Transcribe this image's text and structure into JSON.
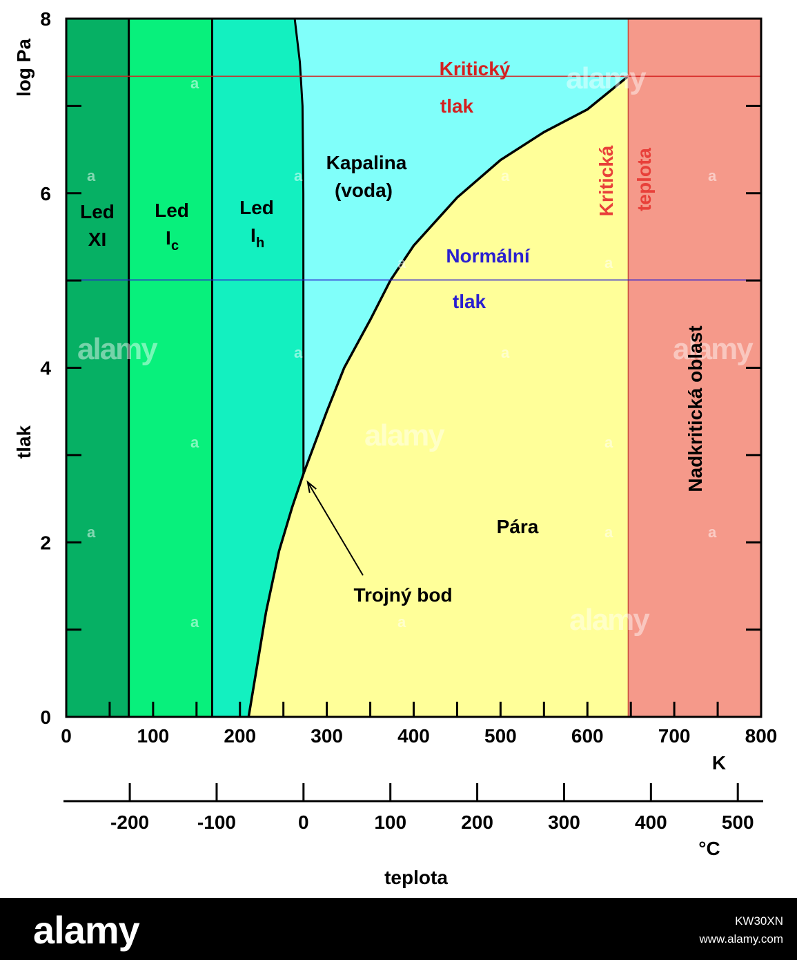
{
  "chart_data": {
    "type": "area",
    "ylabel_unit": "log Pa",
    "ylabel": "tlak",
    "xlabel": "teplota",
    "x_unit_primary": "K",
    "x_unit_secondary": "°C",
    "xlim": [
      0,
      800
    ],
    "ylim": [
      0,
      8
    ],
    "x_ticks": [
      "0",
      "100",
      "200",
      "300",
      "400",
      "500",
      "600",
      "700",
      "800"
    ],
    "y_ticks": [
      "0",
      "2",
      "4",
      "6",
      "8"
    ],
    "celsius_ticks": [
      "-200",
      "-100",
      "0",
      "100",
      "200",
      "300",
      "400",
      "500"
    ],
    "celsius_tick_values_K": [
      73.15,
      173.15,
      273.15,
      373.15,
      473.15,
      573.15,
      673.15,
      773.15
    ],
    "regions": [
      {
        "name": "Led XI",
        "x_from": 0,
        "x_to": 72,
        "color": "#06b064"
      },
      {
        "name": "Led Ic",
        "x_from": 72,
        "x_to": 168,
        "color": "#08f07c"
      },
      {
        "name": "Led Ih",
        "x_from": 168,
        "x_to": 273.16,
        "color": "#13f0c0"
      },
      {
        "name": "Kapalina (voda)",
        "color": "#80fffa"
      },
      {
        "name": "Pára",
        "color": "#ffff99"
      },
      {
        "name": "Nadkritická oblast",
        "x_from": 647,
        "x_to": 800,
        "color": "#f5998a"
      }
    ],
    "phase_boundaries": [
      72,
      168
    ],
    "melting_curve": [
      [
        263,
        8
      ],
      [
        269,
        7.5
      ],
      [
        272,
        7
      ],
      [
        273,
        6
      ],
      [
        273.16,
        2.786
      ]
    ],
    "vaporization_curve": [
      [
        210,
        0
      ],
      [
        220,
        0.6
      ],
      [
        230,
        1.2
      ],
      [
        245,
        1.9
      ],
      [
        260,
        2.4
      ],
      [
        273.16,
        2.786
      ],
      [
        300,
        3.5
      ],
      [
        320,
        4.0
      ],
      [
        350,
        4.55
      ],
      [
        373.15,
        5.0
      ],
      [
        400,
        5.4
      ],
      [
        450,
        5.95
      ],
      [
        500,
        6.38
      ],
      [
        550,
        6.7
      ],
      [
        600,
        6.96
      ],
      [
        647,
        7.34
      ]
    ],
    "critical_pressure_logPa": 7.34,
    "normal_pressure_logPa": 5.006,
    "critical_temperature_K": 647,
    "triple_point": [
      273.16,
      2.786
    ],
    "line_colors": {
      "critical": "#d42020",
      "normal": "#2a1fd0"
    },
    "labels": {
      "led_xi": [
        "Led",
        "XI"
      ],
      "led_ic": [
        "Led",
        "I",
        "c"
      ],
      "led_ih": [
        "Led",
        "I",
        "h"
      ],
      "liquid": [
        "Kapalina",
        "(voda)"
      ],
      "vapor": "Pára",
      "supercritical": "Nadkritická oblast",
      "critical_pressure": [
        "Kritický",
        "tlak"
      ],
      "normal_pressure": [
        "Normální",
        "tlak"
      ],
      "critical_temperature": [
        "Kritická",
        "teplota"
      ],
      "triple_point": "Trojný bod"
    }
  },
  "watermark": "alamy",
  "footer": {
    "logo": "alamy",
    "image_id": "KW30XN",
    "url": "www.alamy.com"
  }
}
